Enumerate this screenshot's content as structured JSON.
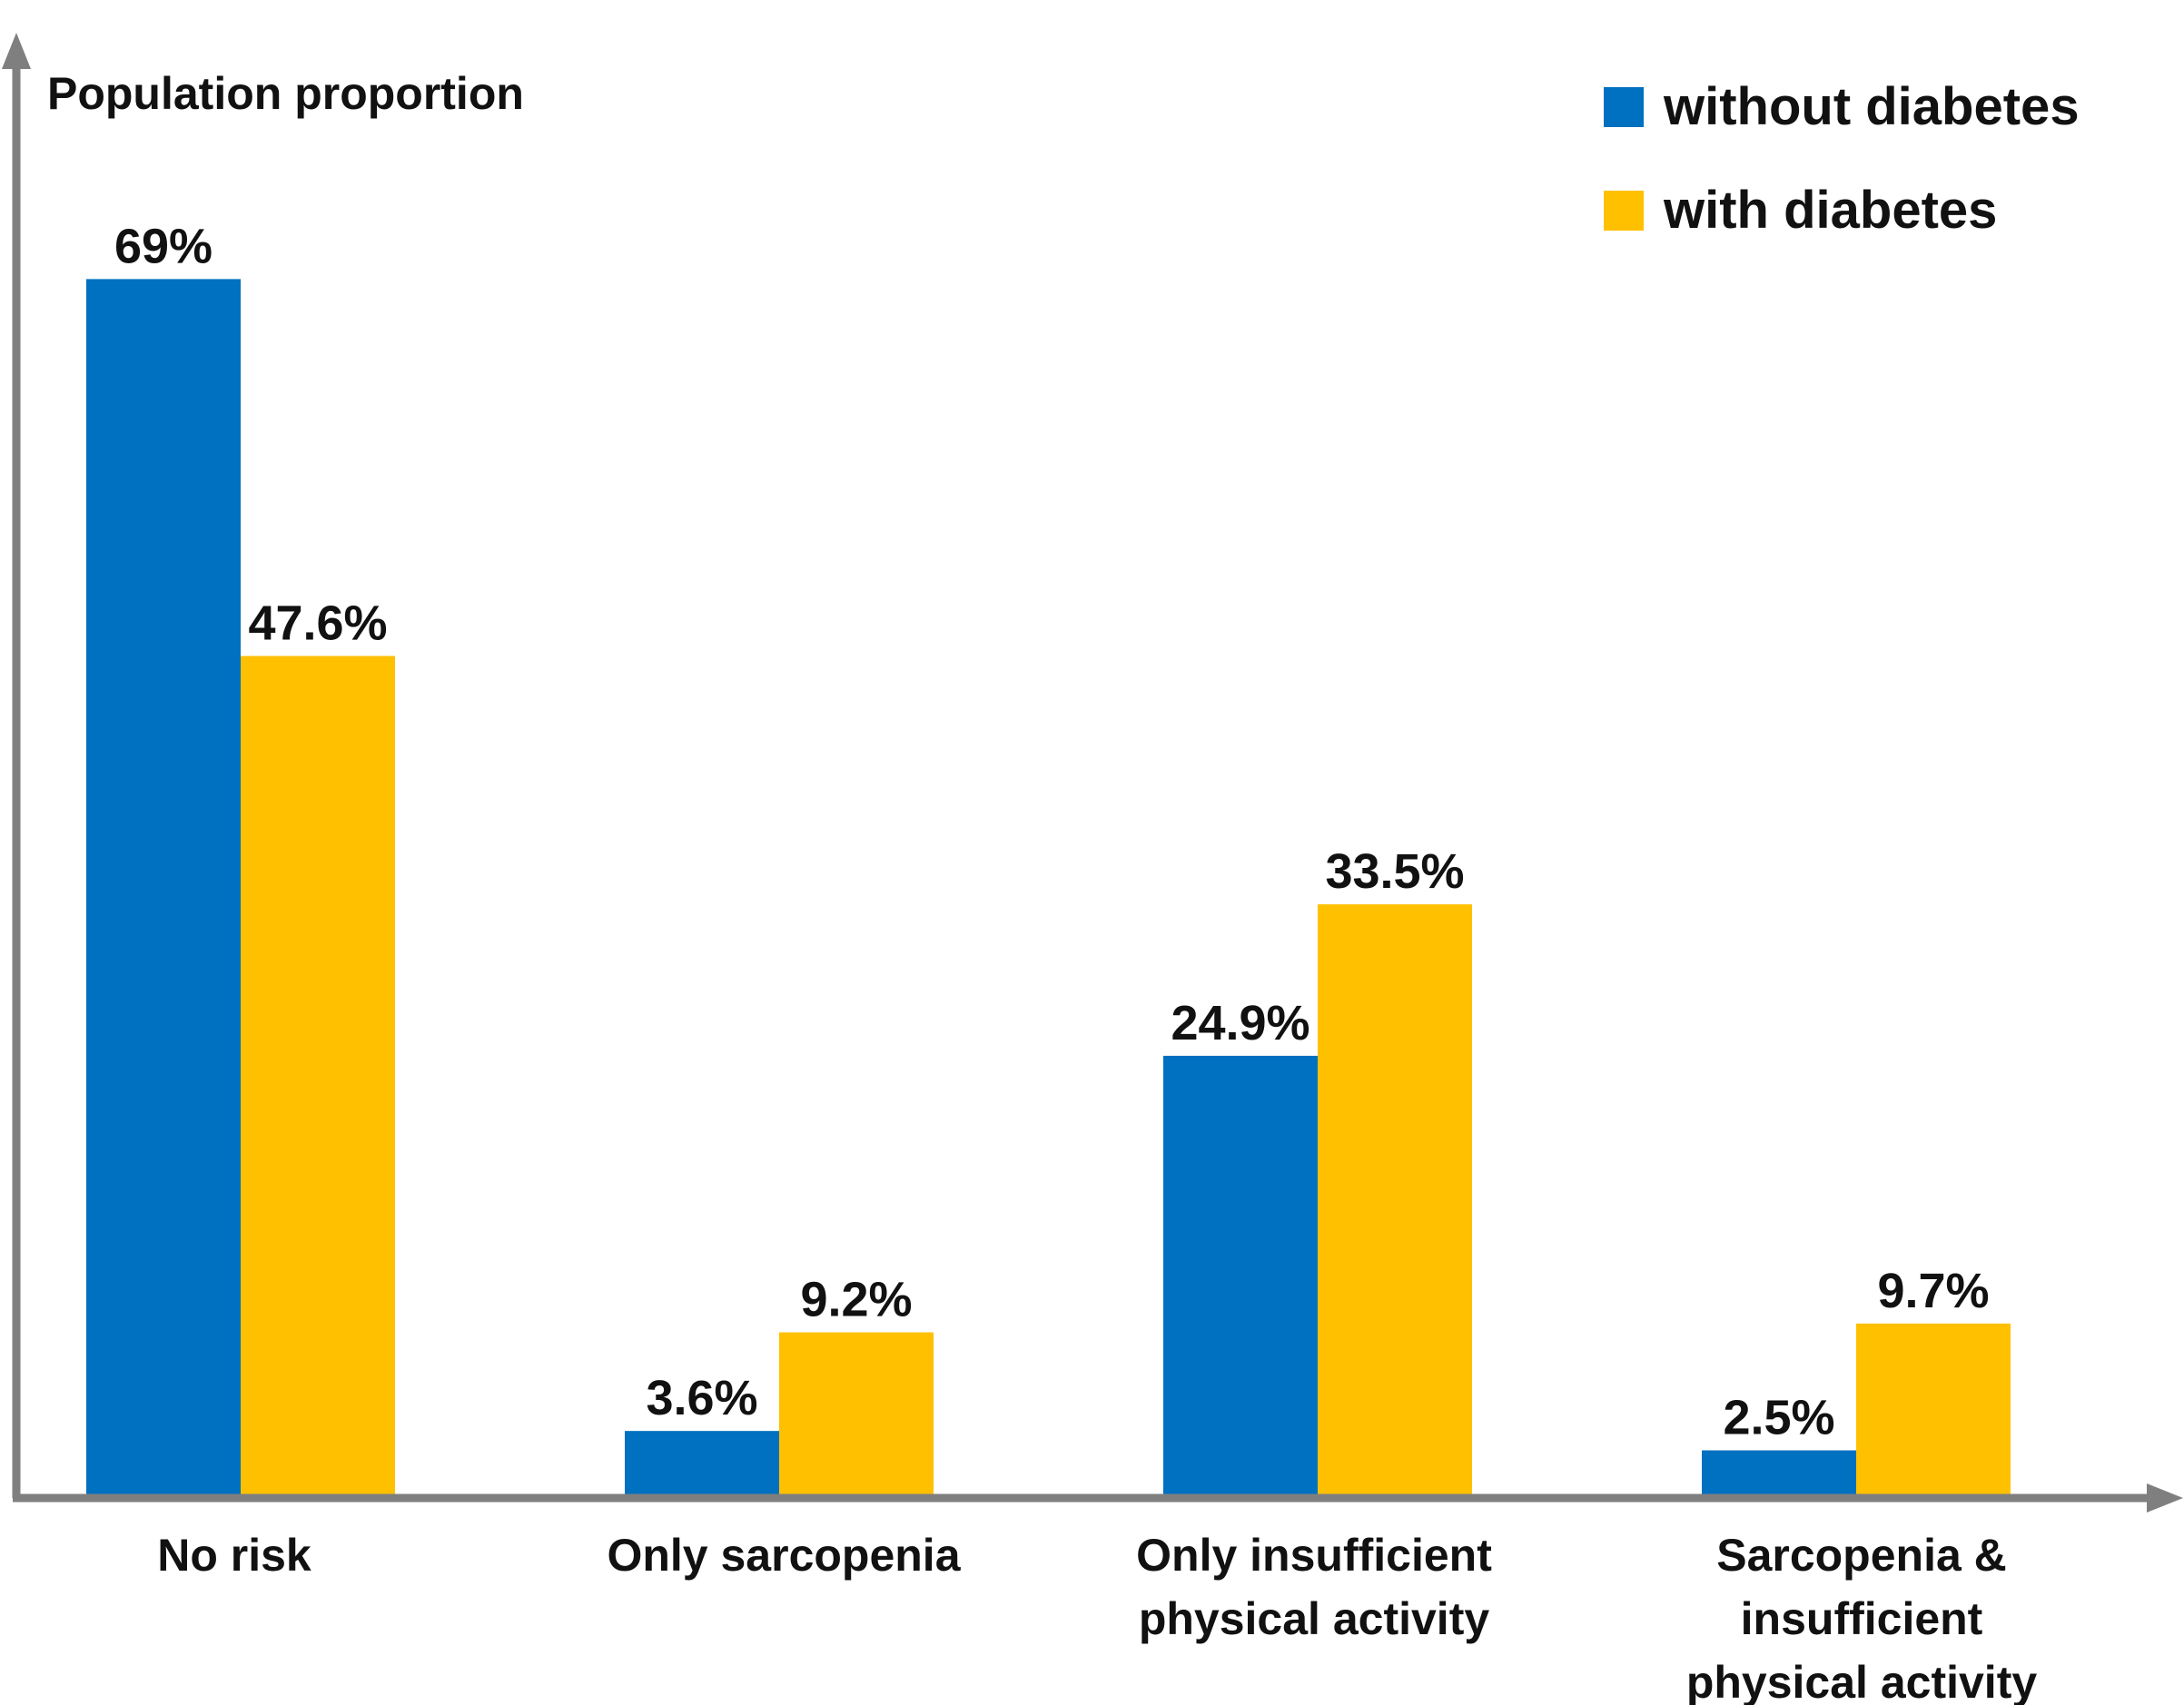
{
  "chart_data": {
    "type": "bar",
    "title": "",
    "ylabel": "Population proportion",
    "xlabel": "",
    "ylim": [
      0,
      80
    ],
    "grid": false,
    "legend_position": "top-right",
    "categories": [
      [
        "No risk"
      ],
      [
        "Only sarcopenia"
      ],
      [
        "Only insufficient",
        "physical  activity"
      ],
      [
        "Sarcopenia &",
        "insufficient",
        "physical  activity"
      ]
    ],
    "series": [
      {
        "name": "without diabetes",
        "color": "#0070C0",
        "values": [
          69,
          3.6,
          24.9,
          2.5
        ],
        "labels": [
          "69%",
          "3.6%",
          "24.9%",
          "2.5%"
        ]
      },
      {
        "name": "with diabetes",
        "color": "#FFC000",
        "values": [
          47.6,
          9.2,
          33.5,
          9.7
        ],
        "labels": [
          "47.6%",
          "9.2%",
          "33.5%",
          "9.7%"
        ]
      }
    ],
    "axis_color": "#7F7F7F"
  }
}
